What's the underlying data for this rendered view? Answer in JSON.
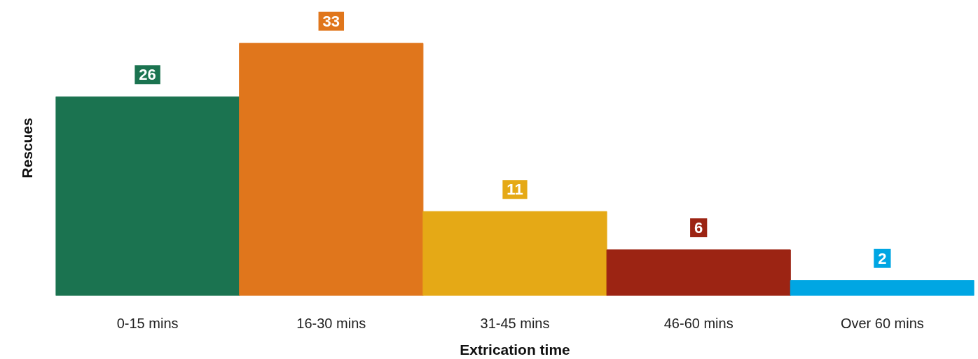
{
  "chart_data": {
    "type": "bar",
    "xlabel": "Extrication time",
    "ylabel": "Rescues",
    "categories": [
      "0-15 mins",
      "16-30 mins",
      "31-45 mins",
      "46-60 mins",
      "Over 60 mins"
    ],
    "values": [
      26,
      33,
      11,
      6,
      2
    ],
    "colors": [
      "#1b7350",
      "#e0761c",
      "#e5a916",
      "#9c2413",
      "#00a6e3"
    ],
    "data_labels": true,
    "tick_labels": "x",
    "grid": false
  }
}
